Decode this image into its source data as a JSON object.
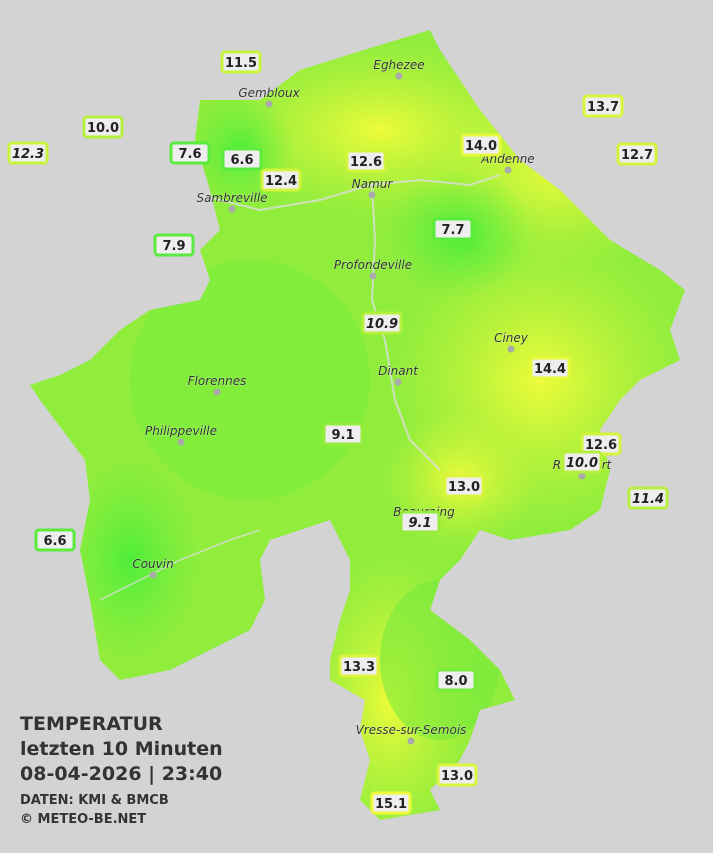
{
  "title": {
    "line1": "TEMPERATUR",
    "line2": "letzten 10 Minuten",
    "line3": "08-04-2026  |  23:40",
    "source": "DATEN: KMI & BMCB",
    "copyright": "© METEO-BE.NET"
  },
  "cities": [
    "Eghezee",
    "Gembloux",
    "Andenne",
    "Namur",
    "Sambreville",
    "Profondeville",
    "Ciney",
    "Dinant",
    "Florennes",
    "Philippeville",
    "Rochefort",
    "Beauraing",
    "Couvin",
    "Vresse-sur-Semois"
  ],
  "stations": [
    {
      "value": "11.5",
      "italic": false,
      "color": "#c8f53c"
    },
    {
      "value": "10.0",
      "italic": false,
      "color": "#b4f03c"
    },
    {
      "value": "12.3",
      "italic": true,
      "color": "#c8f53c"
    },
    {
      "value": "7.6",
      "italic": false,
      "color": "#5aeb3c"
    },
    {
      "value": "6.6",
      "italic": false,
      "color": "#5aeb3c"
    },
    {
      "value": "12.4",
      "italic": false,
      "color": "#d2f53c"
    },
    {
      "value": "12.6",
      "italic": false,
      "color": "#d2f53c"
    },
    {
      "value": "14.0",
      "italic": false,
      "color": "#e6fa3c"
    },
    {
      "value": "13.7",
      "italic": false,
      "color": "#dcf53c"
    },
    {
      "value": "12.7",
      "italic": false,
      "color": "#d2f53c"
    },
    {
      "value": "7.9",
      "italic": false,
      "color": "#5aeb3c"
    },
    {
      "value": "7.7",
      "italic": false,
      "color": "#5aeb3c"
    },
    {
      "value": "10.9",
      "italic": true,
      "color": "#b4f03c"
    },
    {
      "value": "14.4",
      "italic": false,
      "color": "#e6fa3c"
    },
    {
      "value": "9.1",
      "italic": false,
      "color": "#96eb3c"
    },
    {
      "value": "12.6",
      "italic": false,
      "color": "#d2f53c"
    },
    {
      "value": "10.0",
      "italic": true,
      "color": "#b4f03c"
    },
    {
      "value": "11.4",
      "italic": true,
      "color": "#b4f03c"
    },
    {
      "value": "13.0",
      "italic": false,
      "color": "#dcf53c"
    },
    {
      "value": "9.1",
      "italic": true,
      "color": "#96eb3c"
    },
    {
      "value": "6.6",
      "italic": false,
      "color": "#5aeb3c"
    },
    {
      "value": "13.3",
      "italic": false,
      "color": "#dcf53c"
    },
    {
      "value": "8.0",
      "italic": false,
      "color": "#78eb3c"
    },
    {
      "value": "13.0",
      "italic": false,
      "color": "#dcf53c"
    },
    {
      "value": "15.1",
      "italic": false,
      "color": "#f0fa3c"
    }
  ]
}
